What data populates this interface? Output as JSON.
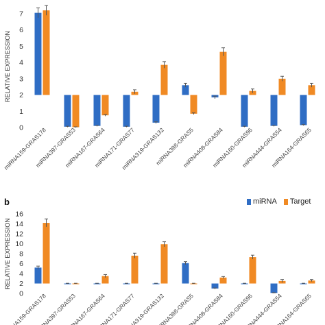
{
  "colors": {
    "mirna": "#2f6dc4",
    "target": "#f08a24",
    "error_bar": "#555555"
  },
  "chart_data": [
    {
      "type": "bar",
      "ylabel": "RELATIVE EXPRESSION",
      "ylim": [
        0,
        7.5
      ],
      "yticks": [
        0,
        1,
        2,
        3,
        4,
        5,
        6,
        7
      ],
      "baseline_note": "",
      "categories": [
        "miRNA159-GRAS178",
        "miRNA397-GRAS53",
        "miRNA167-GRAS64",
        "miRNA171-GRAS77",
        "miRNA319-GRAS132",
        "miRNA398-GRAS5",
        "miRNA408-GRAS84",
        "miRNA160-GRAS96",
        "miRNA444-GRAS54",
        "miRNA164-GRAS65"
      ],
      "series": [
        {
          "name": "miRNA",
          "values": [
            7.05,
            0.05,
            0.1,
            0.05,
            0.3,
            2.6,
            1.85,
            0.05,
            0.1,
            0.15
          ],
          "errors": [
            0.3,
            0.03,
            0.03,
            0.03,
            0.05,
            0.12,
            0.08,
            0.03,
            0.03,
            0.03
          ]
        },
        {
          "name": "Target",
          "values": [
            7.2,
            0.02,
            0.75,
            2.2,
            3.85,
            0.85,
            4.65,
            2.25,
            3.0,
            2.6
          ],
          "errors": [
            0.3,
            0.02,
            0.05,
            0.12,
            0.2,
            0.05,
            0.25,
            0.12,
            0.15,
            0.12
          ]
        }
      ]
    },
    {
      "type": "bar",
      "panel_label": "b",
      "ylabel": "RELATIVE EXPRESSION",
      "ylim": [
        0,
        16
      ],
      "yticks": [
        0,
        2,
        4,
        6,
        8,
        10,
        12,
        14,
        16
      ],
      "categories": [
        "miRNA159-GRAS178",
        "miRNA397-GRAS53",
        "miRNA167-GRAS64",
        "miRNA171-GRAS77",
        "miRNA319-GRAS132",
        "miRNA398-GRAS5",
        "miRNA408-GRAS84",
        "miRNA160-GRAS96",
        "miRNA444-GRAS54",
        "miRNA164-GRAS65"
      ],
      "series": [
        {
          "name": "miRNA",
          "values": [
            5.2,
            2.0,
            2.0,
            2.0,
            2.0,
            6.1,
            1.0,
            2.0,
            0.1,
            2.0
          ],
          "errors": [
            0.3,
            0.05,
            0.05,
            0.05,
            0.05,
            0.3,
            0.1,
            0.05,
            0.05,
            0.05
          ]
        },
        {
          "name": "Target",
          "values": [
            14.2,
            2.0,
            3.5,
            7.6,
            9.9,
            2.0,
            3.2,
            7.3,
            2.5,
            2.6
          ],
          "errors": [
            0.8,
            0.05,
            0.3,
            0.5,
            0.5,
            0.05,
            0.2,
            0.4,
            0.3,
            0.2
          ]
        }
      ]
    }
  ],
  "legend": {
    "mirna_label": "miRNA",
    "target_label": "Target"
  },
  "panel_b_letter": "b"
}
